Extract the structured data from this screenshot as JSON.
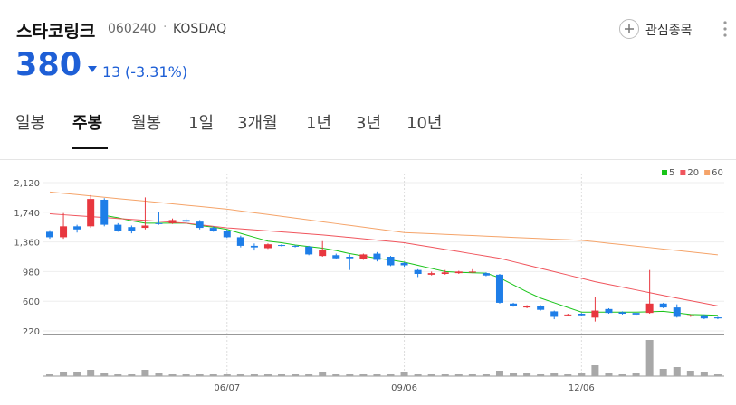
{
  "header": {
    "name": "스타코링크",
    "code": "060240",
    "market": "KOSDAQ",
    "watch_button": "관심종목"
  },
  "quote": {
    "price": "380",
    "change": "13",
    "change_pct": "(-3.31%)"
  },
  "tabs": [
    "일봉",
    "주봉",
    "월봉",
    "1일",
    "3개월",
    "1년",
    "3년",
    "10년"
  ],
  "active_tab": 1,
  "chart_data": {
    "type": "candlestick",
    "categories": [
      null,
      null,
      null,
      null,
      null,
      null,
      null,
      null,
      null,
      null,
      null,
      null,
      null,
      "06/07",
      null,
      null,
      null,
      null,
      null,
      null,
      null,
      null,
      null,
      null,
      null,
      null,
      "09/06",
      null,
      null,
      null,
      null,
      null,
      null,
      null,
      null,
      null,
      null,
      null,
      null,
      "12/06",
      null,
      null,
      null,
      null,
      null,
      null,
      null,
      null,
      null,
      null
    ],
    "open": [
      1490,
      1420,
      1560,
      1560,
      1900,
      1580,
      1550,
      1540,
      1600,
      1600,
      1640,
      1620,
      1540,
      1500,
      1420,
      1310,
      1280,
      1320,
      1310,
      1300,
      1180,
      1190,
      1170,
      1140,
      1210,
      1170,
      1090,
      1000,
      940,
      950,
      960,
      970,
      960,
      940,
      570,
      520,
      540,
      470,
      420,
      440,
      390,
      500,
      460,
      450,
      450,
      570,
      520,
      410,
      420,
      393
    ],
    "high": [
      1510,
      1730,
      1580,
      1960,
      1920,
      1600,
      1570,
      1930,
      1740,
      1660,
      1660,
      1640,
      1560,
      1520,
      1440,
      1340,
      1340,
      1330,
      1320,
      1310,
      1370,
      1210,
      1200,
      1210,
      1230,
      1180,
      1100,
      1010,
      980,
      1000,
      990,
      1010,
      970,
      950,
      580,
      550,
      550,
      480,
      440,
      450,
      660,
      510,
      470,
      450,
      1000,
      580,
      560,
      430,
      430,
      400
    ],
    "low": [
      1400,
      1400,
      1480,
      1540,
      1560,
      1490,
      1470,
      1520,
      1580,
      1590,
      1600,
      1520,
      1490,
      1410,
      1290,
      1250,
      1270,
      1300,
      1290,
      1190,
      1170,
      1140,
      1000,
      1130,
      1110,
      1050,
      1040,
      910,
      930,
      940,
      950,
      960,
      920,
      570,
      530,
      510,
      480,
      370,
      410,
      410,
      340,
      440,
      430,
      420,
      440,
      510,
      390,
      400,
      370,
      370
    ],
    "close": [
      1420,
      1560,
      1520,
      1910,
      1580,
      1500,
      1500,
      1570,
      1590,
      1640,
      1620,
      1540,
      1500,
      1420,
      1310,
      1290,
      1330,
      1310,
      1300,
      1200,
      1260,
      1150,
      1150,
      1200,
      1130,
      1060,
      1060,
      950,
      960,
      970,
      980,
      980,
      930,
      580,
      540,
      540,
      490,
      400,
      430,
      420,
      480,
      450,
      440,
      430,
      570,
      520,
      400,
      420,
      380,
      380
    ],
    "up_color": "#e8373f",
    "down_color": "#1e7ee8",
    "series": [
      {
        "name": "5",
        "color": "#19c419",
        "values": [
          null,
          null,
          null,
          null,
          1700,
          1670,
          1630,
          1600,
          1600,
          1600,
          1600,
          1570,
          1550,
          1520,
          1470,
          1420,
          1370,
          1350,
          1320,
          1300,
          1280,
          1250,
          1210,
          1180,
          1150,
          1130,
          1100,
          1060,
          1020,
          980,
          970,
          965,
          960,
          900,
          810,
          720,
          640,
          580,
          520,
          460,
          460,
          460,
          460,
          460,
          465,
          470,
          450,
          430,
          425,
          420
        ]
      },
      {
        "name": "20",
        "color": "#f0555d",
        "values": [
          1720,
          1708,
          1696,
          1684,
          1672,
          1660,
          1648,
          1636,
          1624,
          1612,
          1600,
          1580,
          1560,
          1540,
          1527,
          1514,
          1501,
          1488,
          1475,
          1462,
          1450,
          1433,
          1417,
          1400,
          1383,
          1367,
          1350,
          1321,
          1293,
          1264,
          1236,
          1207,
          1179,
          1150,
          1107,
          1064,
          1021,
          979,
          936,
          893,
          850,
          815,
          780,
          745,
          710,
          675,
          640,
          607,
          573,
          540
        ]
      },
      {
        "name": "60",
        "color": "#f5a46a",
        "values": [
          2000,
          1983,
          1966,
          1949,
          1932,
          1915,
          1898,
          1882,
          1865,
          1848,
          1831,
          1814,
          1797,
          1780,
          1757,
          1734,
          1711,
          1688,
          1665,
          1642,
          1618,
          1595,
          1572,
          1549,
          1526,
          1503,
          1480,
          1472,
          1465,
          1457,
          1449,
          1442,
          1434,
          1426,
          1418,
          1411,
          1403,
          1395,
          1388,
          1380,
          1362,
          1343,
          1325,
          1306,
          1288,
          1269,
          1251,
          1232,
          1214,
          1195
        ]
      }
    ],
    "volume": [
      2,
      5,
      4,
      7,
      3,
      2,
      2,
      7,
      3,
      2,
      2,
      2,
      2,
      2,
      2,
      2,
      2,
      2,
      2,
      2,
      5,
      2,
      2,
      2,
      2,
      2,
      5,
      2,
      2,
      2,
      2,
      2,
      2,
      6,
      3,
      3,
      2,
      3,
      2,
      3,
      12,
      3,
      2,
      3,
      40,
      8,
      10,
      6,
      4,
      2
    ],
    "volume_color": "#a8a8a8",
    "ylim": [
      220,
      2120
    ],
    "yticks": [
      {
        "value": 2120,
        "label": "2,120"
      },
      {
        "value": 1740,
        "label": "1,740"
      },
      {
        "value": 1360,
        "label": "1,360"
      },
      {
        "value": 980,
        "label": "980"
      },
      {
        "value": 600,
        "label": "600"
      },
      {
        "value": 220,
        "label": "220"
      }
    ],
    "grid": true
  }
}
